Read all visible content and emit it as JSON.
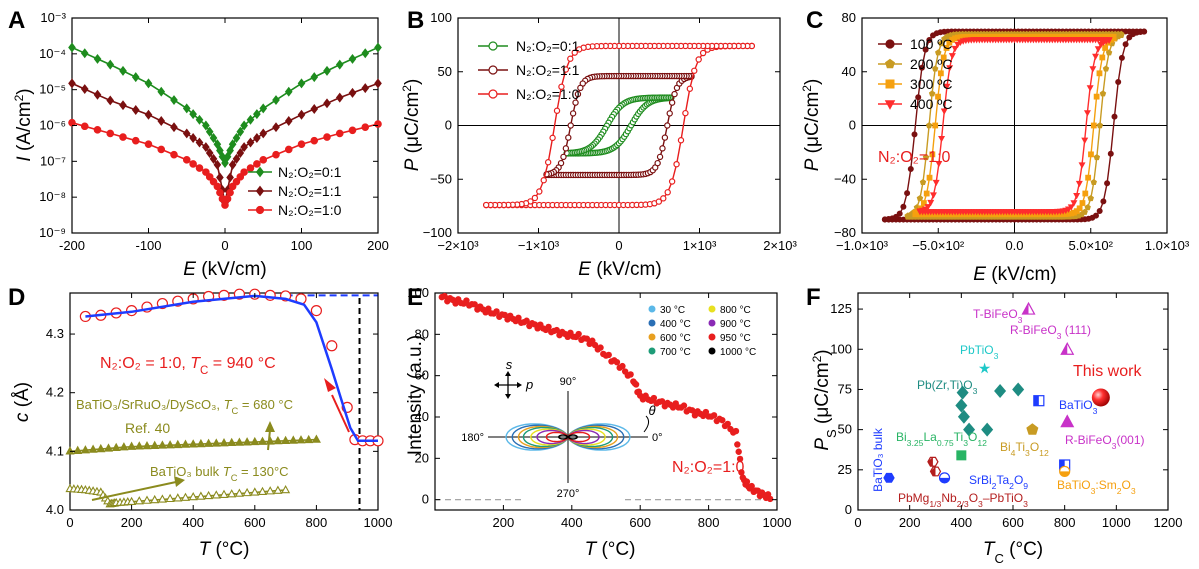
{
  "colors": {
    "green": "#1e8c1e",
    "darkred": "#7a1010",
    "red": "#e81e1e",
    "olive": "#8b8b1e",
    "blue": "#1e3cff",
    "orange": "#f5a00f",
    "gold": "#c89b23",
    "teal": "#1e8c82",
    "magenta": "#c832c8",
    "cyan": "#1ec8c8"
  },
  "chart_data": [
    {
      "id": "A",
      "panel_label": "A",
      "type": "line",
      "yscale": "log",
      "xlim": [
        -200,
        200
      ],
      "ylim": [
        1e-09,
        0.001
      ],
      "xlabel": "E (kV/cm)",
      "ylabel": "I (A/cm²)",
      "xticks": [
        -200,
        -100,
        0,
        100,
        200
      ],
      "xtick_labels": [
        "-200",
        "-100",
        "0",
        "100",
        "200"
      ],
      "yticks": [
        1e-09,
        1e-08,
        1e-07,
        1e-06,
        1e-05,
        0.0001,
        0.001
      ],
      "ytick_labels": [
        "10⁻⁹",
        "10⁻⁸",
        "10⁻⁷",
        "10⁻⁶",
        "10⁻⁵",
        "10⁻⁴",
        "10⁻³"
      ],
      "series": [
        {
          "name": "N₂:O₂=0:1",
          "marker": "diamond",
          "color": "#1e8c1e",
          "x": [
            -200,
            -150,
            -100,
            -50,
            -25,
            -10,
            0,
            10,
            25,
            50,
            100,
            150,
            200
          ],
          "y": [
            0.00015,
            5e-05,
            1.5e-05,
            3e-06,
            1e-06,
            3e-07,
            9e-08,
            3e-07,
            1e-06,
            3e-06,
            1.5e-05,
            5e-05,
            0.00015
          ]
        },
        {
          "name": "N₂:O₂=1:1",
          "marker": "diamond",
          "color": "#7a1010",
          "x": [
            -200,
            -150,
            -100,
            -50,
            -25,
            -10,
            0,
            10,
            25,
            50,
            100,
            150,
            200
          ],
          "y": [
            1.5e-05,
            5e-06,
            2e-06,
            6e-07,
            2.5e-07,
            8e-08,
            7e-09,
            8e-08,
            2.5e-07,
            6e-07,
            2e-06,
            6e-06,
            1.5e-05
          ]
        },
        {
          "name": "N₂:O₂=1:0",
          "marker": "circle",
          "color": "#e81e1e",
          "x": [
            -200,
            -150,
            -100,
            -50,
            -25,
            -10,
            0,
            10,
            25,
            50,
            100,
            150,
            200
          ],
          "y": [
            1.2e-06,
            6e-07,
            3e-07,
            1.1e-07,
            5e-08,
            2e-08,
            6e-09,
            2e-08,
            5e-08,
            1.1e-07,
            3e-07,
            6e-07,
            1.1e-06
          ]
        }
      ],
      "legend": "lower-right"
    },
    {
      "id": "B",
      "panel_label": "B",
      "type": "line",
      "xlim": [
        -2000,
        2000
      ],
      "ylim": [
        -100,
        100
      ],
      "xlabel": "E (kV/cm)",
      "ylabel": "P (μC/cm²)",
      "xticks": [
        -2000,
        -1000,
        0,
        1000,
        2000
      ],
      "xtick_labels": [
        "−2×10³",
        "−1×10³",
        "0",
        "1×10³",
        "2×10³"
      ],
      "yticks": [
        -100,
        -50,
        0,
        50,
        100
      ],
      "ytick_labels": [
        "−100",
        "−50",
        "0",
        "50",
        "100"
      ],
      "loops": [
        {
          "name": "N₂:O₂=0:1",
          "color": "#1e8c1e",
          "emax": 650,
          "ps": 26,
          "pr": 18,
          "ec": 150,
          "w": 200
        },
        {
          "name": "N₂:O₂=1:1",
          "color": "#7a1010",
          "emax": 900,
          "ps": 46,
          "pr": 40,
          "ec": 600,
          "w": 120
        },
        {
          "name": "N₂:O₂=1:0",
          "color": "#e81e1e",
          "emax": 1650,
          "ps": 74,
          "pr": 66,
          "ec": 800,
          "w": 160
        }
      ],
      "legend": "top-left"
    },
    {
      "id": "C",
      "panel_label": "C",
      "type": "line",
      "xlim": [
        -1000,
        1000
      ],
      "ylim": [
        -80,
        80
      ],
      "xlabel": "E (kV/cm)",
      "ylabel": "P (μC/cm²)",
      "xticks": [
        -1000,
        -500,
        0,
        500,
        1000
      ],
      "xtick_labels": [
        "−1.0×10³",
        "−5.0×10²",
        "0.0",
        "5.0×10²",
        "1.0×10³"
      ],
      "yticks": [
        -80,
        -40,
        0,
        40,
        80
      ],
      "ytick_labels": [
        "−80",
        "−40",
        "0",
        "40",
        "80"
      ],
      "annotation": "N₂:O₂=1:0",
      "loops": [
        {
          "name": "100 ºC",
          "marker": "circle",
          "color": "#7a1010",
          "emax": 850,
          "ps": 70,
          "pr": 65,
          "ec": 650,
          "w": 60
        },
        {
          "name": "200 ºC",
          "marker": "pentagon",
          "color": "#c89b23",
          "emax": 700,
          "ps": 68,
          "pr": 62,
          "ec": 560,
          "w": 55
        },
        {
          "name": "300 ºC",
          "marker": "square",
          "color": "#f5a00f",
          "emax": 650,
          "ps": 66,
          "pr": 60,
          "ec": 520,
          "w": 55
        },
        {
          "name": "400 ºC",
          "marker": "triangle-down",
          "color": "#ff2d2d",
          "emax": 620,
          "ps": 64,
          "pr": 58,
          "ec": 470,
          "w": 55
        }
      ],
      "legend": "top-left"
    },
    {
      "id": "D",
      "panel_label": "D",
      "type": "line",
      "xlim": [
        0,
        1000
      ],
      "ylim": [
        4.0,
        4.37
      ],
      "xlabel": "T (°C)",
      "ylabel": "c (Å)",
      "xticks": [
        0,
        200,
        400,
        600,
        800,
        1000
      ],
      "xtick_labels": [
        "0",
        "200",
        "400",
        "600",
        "800",
        "1000"
      ],
      "yticks": [
        4.0,
        4.1,
        4.2,
        4.3
      ],
      "ytick_labels": [
        "4.0",
        "4.1",
        "4.2",
        "4.3"
      ],
      "series": [
        {
          "name": "N₂:O₂ = 1:0",
          "marker": "circle",
          "color": "#e81e1e",
          "x": [
            50,
            100,
            150,
            200,
            250,
            300,
            350,
            400,
            450,
            500,
            550,
            600,
            650,
            700,
            750,
            800,
            850,
            900,
            925,
            950,
            975,
            1000
          ],
          "y": [
            4.33,
            4.332,
            4.336,
            4.34,
            4.346,
            4.352,
            4.356,
            4.36,
            4.364,
            4.366,
            4.368,
            4.368,
            4.366,
            4.365,
            4.36,
            4.34,
            4.28,
            4.175,
            4.12,
            4.118,
            4.118,
            4.118
          ]
        },
        {
          "name": "BaTiO₃/SrRuO₃/DyScO₃",
          "marker": "triangle-up",
          "color": "#8b8b1e",
          "x": [
            0,
            100,
            200,
            300,
            400,
            500,
            600,
            700,
            800
          ],
          "y": [
            4.1,
            4.104,
            4.108,
            4.11,
            4.112,
            4.114,
            4.116,
            4.118,
            4.12
          ]
        },
        {
          "name": "BaTiO₃ bulk",
          "marker": "triangle-up-open",
          "color": "#8b8b1e",
          "x": [
            0,
            50,
            100,
            130,
            150,
            200,
            300,
            400,
            500,
            600,
            700
          ],
          "y": [
            4.036,
            4.034,
            4.03,
            4.01,
            4.012,
            4.014,
            4.018,
            4.022,
            4.026,
            4.03,
            4.034
          ]
        }
      ],
      "fit_line": {
        "color": "#1e3cff",
        "x": [
          50,
          200,
          400,
          600,
          700,
          760,
          800,
          850,
          880,
          910,
          935,
          1000
        ],
        "y": [
          4.33,
          4.338,
          4.355,
          4.365,
          4.36,
          4.35,
          4.32,
          4.24,
          4.19,
          4.14,
          4.118,
          4.118
        ]
      },
      "dashed_h": {
        "color": "#1e3cff",
        "y": 4.366,
        "x0": 700,
        "x1": 1000
      },
      "dashed_v": {
        "color": "#000000",
        "x": 940
      },
      "annotations": [
        {
          "text": "N₂:O₂ = 1:0, T",
          "sub": "C",
          "tail": " = 940 °C",
          "color": "#e81e1e"
        },
        {
          "text": "BaTiO₃/SrRuO₃/DyScO₃, T",
          "sub": "C",
          "tail": " = 680 °C",
          "color": "#8b8b1e"
        },
        {
          "text": "Ref. 40",
          "sub": "",
          "tail": "",
          "color": "#8b8b1e"
        },
        {
          "text": "BaTiO₃ bulk  T",
          "sub": "C",
          "tail": " = 130°C",
          "color": "#8b8b1e"
        }
      ]
    },
    {
      "id": "E",
      "panel_label": "E",
      "type": "scatter",
      "xlim": [
        0,
        1000
      ],
      "ylim": [
        -5,
        100
      ],
      "xlabel": "T (°C)",
      "ylabel": "Intensity (a.u.)",
      "xticks": [
        200,
        400,
        600,
        800,
        1000
      ],
      "xtick_labels": [
        "200",
        "400",
        "600",
        "800",
        "1000"
      ],
      "yticks": [
        0,
        20,
        40,
        60,
        80,
        100
      ],
      "ytick_labels": [
        "0",
        "20",
        "40",
        "60",
        "80",
        "100"
      ],
      "series": [
        {
          "name": "intensity",
          "color": "#e81e1e",
          "x": [
            20,
            60,
            100,
            140,
            180,
            220,
            260,
            300,
            340,
            380,
            420,
            460,
            500,
            540,
            580,
            600,
            640,
            680,
            720,
            760,
            800,
            840,
            880,
            900,
            920,
            950,
            980
          ],
          "y": [
            98,
            96,
            95,
            92,
            90,
            88,
            86,
            84,
            82,
            80,
            79,
            76,
            70,
            65,
            58,
            50,
            48,
            46,
            45,
            42,
            41,
            38,
            32,
            10,
            6,
            3,
            1
          ]
        }
      ],
      "annotation": "N₂:O₂=1:0",
      "polar_legend": [
        "30 °C",
        "400 °C",
        "600 °C",
        "700 °C",
        "800 °C",
        "900 °C",
        "950 °C",
        "1000 °C"
      ],
      "polar_colors": [
        "#5bb8e8",
        "#2a6fb5",
        "#e8a020",
        "#1e9c78",
        "#e8e020",
        "#8a2ab5",
        "#e81e1e",
        "#000000"
      ],
      "polar_scale": [
        1.0,
        0.9,
        0.8,
        0.72,
        0.6,
        0.5,
        0.35,
        0.15
      ],
      "polar_labels": [
        "90°",
        "180°",
        "270°",
        "0°"
      ],
      "axis_labels": [
        "s",
        "p",
        "θ"
      ]
    },
    {
      "id": "F",
      "panel_label": "F",
      "type": "scatter",
      "xlim": [
        0,
        1200
      ],
      "ylim": [
        0,
        135
      ],
      "xlabel": "T (°C)",
      "ylabel": "P (μC/cm²)",
      "xticks": [
        0,
        200,
        400,
        600,
        800,
        1000,
        1200
      ],
      "xtick_labels": [
        "0",
        "200",
        "400",
        "600",
        "800",
        "1000",
        "1200"
      ],
      "yticks": [
        0,
        25,
        50,
        75,
        100,
        125
      ],
      "ytick_labels": [
        "0",
        "25",
        "50",
        "75",
        "100",
        "125"
      ],
      "points": [
        {
          "label": "BaTiO₃ bulk",
          "x": 120,
          "y": 20,
          "shape": "hexagon",
          "color": "#1e3cff"
        },
        {
          "label": "PbTiO₃",
          "x": 490,
          "y": 88,
          "shape": "star",
          "color": "#1ec8c8"
        },
        {
          "label": "Pb(Zr,Ti)O₃",
          "x": 400,
          "y": 65,
          "shape": "diamond",
          "color": "#1e8c82"
        },
        {
          "label": "",
          "x": 410,
          "y": 58,
          "shape": "diamond",
          "color": "#1e8c82"
        },
        {
          "label": "",
          "x": 430,
          "y": 50,
          "shape": "diamond",
          "color": "#1e8c82"
        },
        {
          "label": "",
          "x": 550,
          "y": 74,
          "shape": "diamond",
          "color": "#1e8c82"
        },
        {
          "label": "",
          "x": 620,
          "y": 75,
          "shape": "diamond",
          "color": "#1e8c82"
        },
        {
          "label": "",
          "x": 500,
          "y": 50,
          "shape": "diamond",
          "color": "#1e8c82"
        },
        {
          "label": "",
          "x": 405,
          "y": 73,
          "shape": "diamond",
          "color": "#1e8c82"
        },
        {
          "label": "Bi3.25La0.75Ti3O12",
          "x": 400,
          "y": 34,
          "shape": "square",
          "color": "#28b464"
        },
        {
          "label": "Bi4Ti3O12",
          "x": 675,
          "y": 50,
          "shape": "pentagon",
          "color": "#c89b23"
        },
        {
          "label": "SrBi2Ta2O9",
          "x": 335,
          "y": 20,
          "shape": "circle-half",
          "color": "#1e3cff"
        },
        {
          "label": "PbMg1/3Nb2/3O3-PbTiO3",
          "x": 290,
          "y": 30,
          "shape": "hex-half",
          "color": "#b41e1e"
        },
        {
          "label": "",
          "x": 300,
          "y": 24,
          "shape": "hex-half",
          "color": "#b41e1e"
        },
        {
          "label": "BaTiO₃",
          "x": 700,
          "y": 68,
          "shape": "square-half",
          "color": "#1e3cff"
        },
        {
          "label": "",
          "x": 800,
          "y": 28,
          "shape": "square-half",
          "color": "#1e3cff"
        },
        {
          "label": "BaTiO₃:Sm₂O₃",
          "x": 800,
          "y": 24,
          "shape": "circle-half",
          "color": "#f5a00f"
        },
        {
          "label": "T-BiFeO₃",
          "x": 660,
          "y": 125,
          "shape": "tri-half",
          "color": "#c832c8"
        },
        {
          "label": "R-BiFeO₃ (111)",
          "x": 810,
          "y": 100,
          "shape": "tri-half",
          "color": "#c832c8"
        },
        {
          "label": "R-BiFeO₃(001)",
          "x": 810,
          "y": 55,
          "shape": "tri",
          "color": "#c832c8"
        },
        {
          "label": "This work",
          "x": 940,
          "y": 70,
          "shape": "sphere",
          "color": "#e81e1e"
        }
      ]
    }
  ]
}
